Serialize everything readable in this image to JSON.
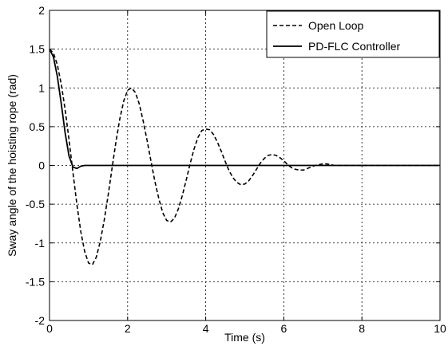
{
  "chart_data": {
    "type": "line",
    "title": "",
    "xlabel": "Time (s)",
    "ylabel": "Sway angle of the hoisting rope (rad)",
    "xlim": [
      0,
      10
    ],
    "ylim": [
      -2,
      2
    ],
    "xticks": [
      0,
      2,
      4,
      6,
      8,
      10
    ],
    "yticks": [
      -2,
      -1.5,
      -1,
      -0.5,
      0,
      0.5,
      1,
      1.5,
      2
    ],
    "xtick_labels": [
      "0",
      "2",
      "4",
      "6",
      "8",
      "10"
    ],
    "ytick_labels": [
      "-2",
      "-1.5",
      "-1",
      "-0.5",
      "0",
      "0.5",
      "1",
      "1.5",
      "2"
    ],
    "grid": true,
    "legend_position": "top-right",
    "series": [
      {
        "name": "Open Loop",
        "style": "dashed",
        "color": "#000000",
        "x": [
          0,
          0.1,
          0.2,
          0.3,
          0.4,
          0.5,
          0.6,
          0.7,
          0.8,
          0.9,
          1.0,
          1.1,
          1.2,
          1.3,
          1.4,
          1.5,
          1.6,
          1.7,
          1.8,
          1.9,
          2.0,
          2.1,
          2.2,
          2.3,
          2.4,
          2.5,
          2.6,
          2.7,
          2.8,
          2.9,
          3.0,
          3.1,
          3.2,
          3.3,
          3.4,
          3.5,
          3.6,
          3.7,
          3.8,
          3.9,
          4.0,
          4.1,
          4.2,
          4.3,
          4.4,
          4.5,
          4.6,
          4.7,
          4.8,
          4.9,
          5.0,
          5.1,
          5.2,
          5.3,
          5.4,
          5.5,
          5.6,
          5.7,
          5.8,
          5.9,
          6.0,
          6.1,
          6.2,
          6.3,
          6.4,
          6.5,
          6.6,
          6.7,
          6.8,
          6.9,
          7.0,
          7.1,
          7.2,
          7.3,
          7.4,
          7.5,
          7.6,
          7.7,
          7.8,
          7.9,
          8.0,
          8.1,
          8.2,
          8.3,
          8.4,
          8.5,
          8.6,
          8.7,
          8.8,
          8.9,
          9.0,
          9.1,
          9.2,
          9.3,
          9.4,
          9.5,
          9.6,
          9.7,
          9.8,
          9.9,
          10.0
        ],
        "y": [
          1.5,
          1.45,
          1.3,
          1.05,
          0.72,
          0.33,
          -0.09,
          -0.5,
          -0.85,
          -1.11,
          -1.26,
          -1.28,
          -1.18,
          -0.98,
          -0.71,
          -0.39,
          -0.04,
          0.3,
          0.6,
          0.83,
          0.97,
          1.0,
          0.94,
          0.79,
          0.57,
          0.32,
          0.05,
          -0.21,
          -0.43,
          -0.61,
          -0.71,
          -0.73,
          -0.68,
          -0.56,
          -0.39,
          -0.19,
          0.02,
          0.21,
          0.36,
          0.45,
          0.47,
          0.46,
          0.4,
          0.3,
          0.18,
          0.05,
          -0.07,
          -0.16,
          -0.22,
          -0.25,
          -0.24,
          -0.2,
          -0.13,
          -0.05,
          0.03,
          0.09,
          0.13,
          0.14,
          0.13,
          0.1,
          0.06,
          0.01,
          -0.03,
          -0.05,
          -0.06,
          -0.06,
          -0.04,
          -0.02,
          0.0,
          0.01,
          0.02,
          0.02,
          0.01,
          0.0,
          0.0,
          0.0,
          0.0,
          0.0,
          0.0,
          0.0,
          0.0,
          0.0,
          0.0,
          0.0,
          0.0,
          0.0,
          0.0,
          0.0,
          0.0,
          0.0,
          0.0,
          0.0,
          0.0,
          0.0,
          0.0,
          0.0,
          0.0,
          0.0,
          0.0,
          0.0,
          0.0
        ]
      },
      {
        "name": "PD-FLC Controller",
        "style": "solid",
        "color": "#000000",
        "x": [
          0,
          0.1,
          0.2,
          0.3,
          0.4,
          0.5,
          0.6,
          0.7,
          0.8,
          0.9,
          1.0,
          1.5,
          2.0,
          3.0,
          4.0,
          5.0,
          6.0,
          7.0,
          8.0,
          9.0,
          10.0
        ],
        "y": [
          1.5,
          1.4,
          1.15,
          0.8,
          0.42,
          0.12,
          -0.02,
          -0.04,
          -0.01,
          0.0,
          0.0,
          0.0,
          0.0,
          0.0,
          0.0,
          0.0,
          0.0,
          0.0,
          0.0,
          0.0,
          0.0
        ]
      }
    ]
  }
}
